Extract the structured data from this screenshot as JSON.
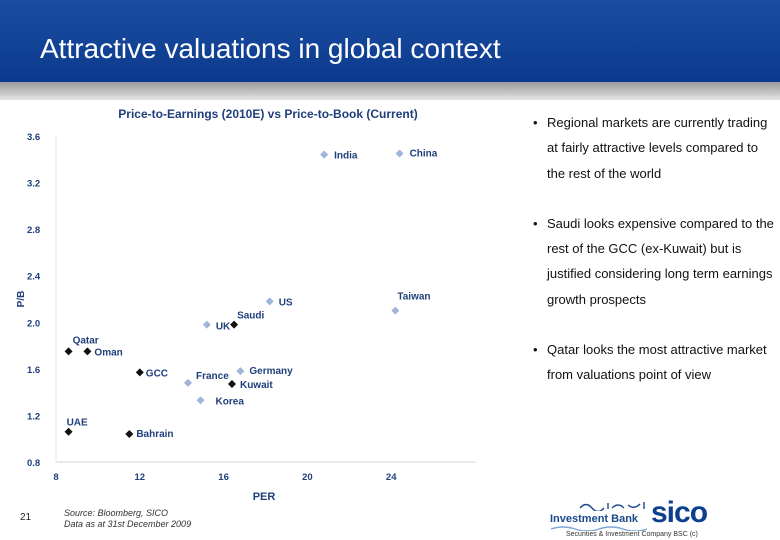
{
  "slide": {
    "title": "Attractive valuations in global context",
    "page_number": "21",
    "source_line1": "Source: Bloomberg, SICO",
    "source_line2": "Data as at 31st December 2009"
  },
  "bullets": [
    "Regional markets are currently trading at fairly attractive levels compared to the rest of the world",
    "Saudi looks expensive compared to the rest of the GCC (ex-Kuwait) but is justified considering long term earnings growth prospects",
    "Qatar looks the most attractive market from valuations point of view"
  ],
  "logo": {
    "name": "sico",
    "division": "Investment Bank",
    "company": "Securities & Investment Company BSC (c)",
    "arabic_text": "بنك استثماري"
  },
  "chart_data": {
    "type": "scatter",
    "title": "Price-to-Earnings (2010E) vs Price-to-Book (Current)",
    "xlabel": "PER",
    "ylabel": "P/B",
    "xlim": [
      8,
      28
    ],
    "ylim": [
      0.8,
      3.6
    ],
    "xticks": [
      "8",
      "12",
      "16",
      "20",
      "24"
    ],
    "yticks": [
      "0.8",
      "1.2",
      "1.6",
      "2.0",
      "2.4",
      "2.8",
      "3.2",
      "3.6"
    ],
    "grid": false,
    "legend": "none",
    "colors": {
      "gcc_marker": "#111111",
      "global_marker": "#9fb5d9",
      "label": "#1f3f7a",
      "title": "#1f3f7a"
    },
    "points": [
      {
        "label": "India",
        "x": 20.8,
        "y": 3.44,
        "group": "global"
      },
      {
        "label": "China",
        "x": 24.4,
        "y": 3.45,
        "group": "global"
      },
      {
        "label": "US",
        "x": 18.2,
        "y": 2.18,
        "group": "global"
      },
      {
        "label": "Taiwan",
        "x": 24.2,
        "y": 2.1,
        "group": "global"
      },
      {
        "label": "UK",
        "x": 15.2,
        "y": 1.98,
        "group": "global"
      },
      {
        "label": "Saudi",
        "x": 16.5,
        "y": 1.98,
        "group": "gcc"
      },
      {
        "label": "Qatar",
        "x": 8.6,
        "y": 1.75,
        "group": "gcc"
      },
      {
        "label": "Oman",
        "x": 9.5,
        "y": 1.75,
        "group": "gcc"
      },
      {
        "label": "GCC",
        "x": 12.0,
        "y": 1.57,
        "group": "gcc"
      },
      {
        "label": "France",
        "x": 14.3,
        "y": 1.48,
        "group": "global"
      },
      {
        "label": "Germany",
        "x": 16.8,
        "y": 1.58,
        "group": "global"
      },
      {
        "label": "Kuwait",
        "x": 16.4,
        "y": 1.47,
        "group": "gcc"
      },
      {
        "label": "Korea",
        "x": 14.9,
        "y": 1.33,
        "group": "global"
      },
      {
        "label": "UAE",
        "x": 8.6,
        "y": 1.06,
        "group": "gcc"
      },
      {
        "label": "Bahrain",
        "x": 11.5,
        "y": 1.04,
        "group": "gcc"
      }
    ]
  }
}
